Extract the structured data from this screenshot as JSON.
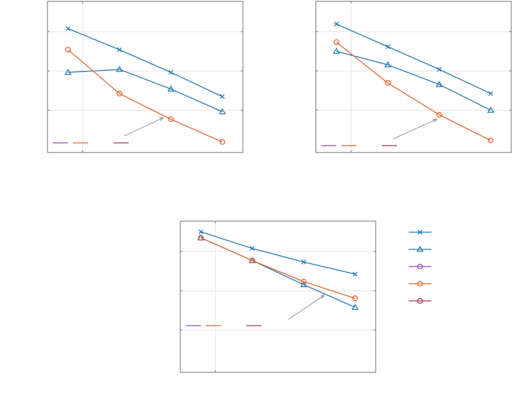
{
  "chart_data": [
    {
      "type": "line",
      "x": [
        1,
        2,
        3,
        4
      ],
      "xlim": [
        0.6,
        4.4
      ],
      "ylim": [
        0,
        1
      ],
      "grid": true,
      "series": [
        {
          "values": [
            0.82,
            0.68,
            0.53,
            0.37
          ],
          "marker": "x",
          "color": "#1f77b4"
        },
        {
          "values": [
            0.53,
            0.55,
            0.42,
            0.27
          ],
          "marker": "triangle",
          "color": "#1f77b4"
        },
        {
          "values": [
            0.68,
            0.39,
            0.22,
            0.07
          ],
          "marker": "circle",
          "color": "#e2642d"
        }
      ],
      "annotation_arrow": {
        "from": [
          2.1,
          0.11
        ],
        "to": [
          2.85,
          0.23
        ]
      },
      "legend_keys": [
        {
          "color": "#8e44ad",
          "position": "bottom-left"
        },
        {
          "color": "#e2642d",
          "position": "bottom-left"
        },
        {
          "color": "#a0304a",
          "position": "bottom-center"
        }
      ]
    },
    {
      "type": "line",
      "x": [
        1,
        2,
        3,
        4
      ],
      "xlim": [
        0.6,
        4.4
      ],
      "ylim": [
        0,
        1
      ],
      "grid": true,
      "series": [
        {
          "values": [
            0.85,
            0.7,
            0.55,
            0.39
          ],
          "marker": "x",
          "color": "#1f77b4"
        },
        {
          "values": [
            0.67,
            0.58,
            0.45,
            0.28
          ],
          "marker": "triangle",
          "color": "#1f77b4"
        },
        {
          "values": [
            0.73,
            0.46,
            0.25,
            0.08
          ],
          "marker": "circle",
          "color": "#e2642d"
        }
      ],
      "annotation_arrow": {
        "from": [
          2.1,
          0.09
        ],
        "to": [
          2.95,
          0.22
        ]
      },
      "legend_keys": [
        {
          "color": "#8e44ad",
          "position": "bottom-left"
        },
        {
          "color": "#e2642d",
          "position": "bottom-left"
        },
        {
          "color": "#a0304a",
          "position": "bottom-center"
        }
      ]
    },
    {
      "type": "line",
      "x": [
        1,
        2,
        3,
        4
      ],
      "xlim": [
        0.6,
        4.4
      ],
      "ylim": [
        0,
        1
      ],
      "grid": true,
      "series": [
        {
          "values": [
            0.93,
            0.82,
            0.73,
            0.65
          ],
          "marker": "x",
          "color": "#1f77b4"
        },
        {
          "values": [
            0.89,
            0.74,
            0.58,
            0.43
          ],
          "marker": "triangle",
          "color": "#1f77b4"
        },
        {
          "values": [
            0.89,
            0.74,
            0.6,
            0.49
          ],
          "marker": "circle",
          "color": "#e2642d"
        }
      ],
      "annotation_arrow": {
        "from": [
          2.7,
          0.35
        ],
        "to": [
          3.4,
          0.51
        ]
      },
      "legend_keys": [
        {
          "color": "#8e44ad",
          "position": "middle-left"
        },
        {
          "color": "#e2642d",
          "position": "middle-left"
        },
        {
          "color": "#a0304a",
          "position": "middle-center"
        }
      ]
    }
  ],
  "legend": {
    "entries": [
      {
        "marker": "x",
        "color": "#1f77b4"
      },
      {
        "marker": "triangle",
        "color": "#1f77b4"
      },
      {
        "marker": "circle",
        "color": "#8e44ad"
      },
      {
        "marker": "circle",
        "color": "#e2642d"
      },
      {
        "marker": "circle",
        "color": "#a0304a"
      }
    ]
  }
}
